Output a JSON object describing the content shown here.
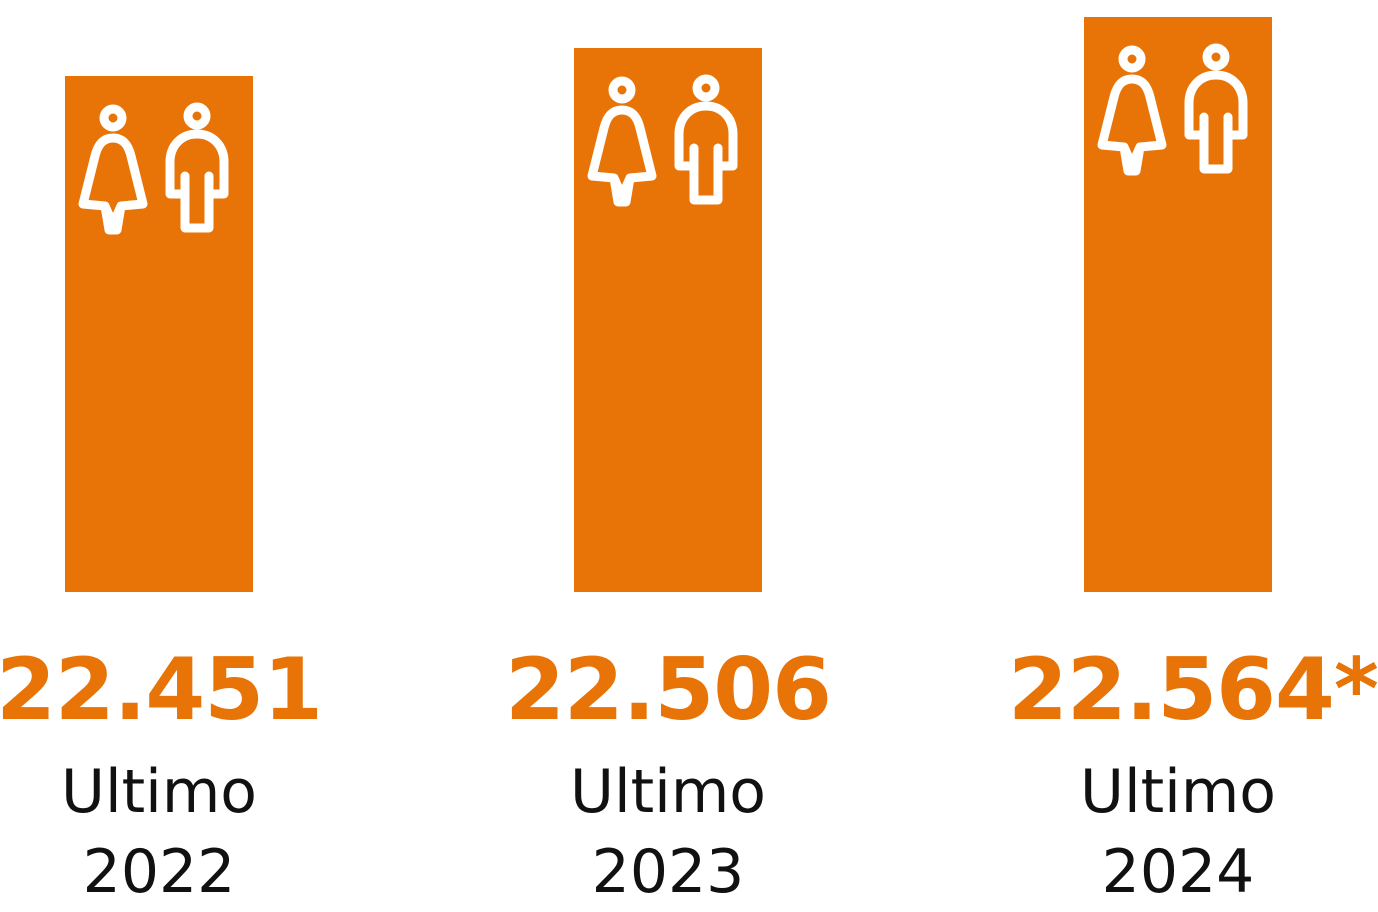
{
  "chart_data": {
    "type": "bar",
    "categories": [
      "Ultimo 2022",
      "Ultimo 2023",
      "Ultimo 2024"
    ],
    "values": [
      22451,
      22506,
      22564
    ],
    "value_labels": [
      "22.451",
      "22.506",
      "22.564*"
    ],
    "color": "#e87306",
    "ylim": [
      21470,
      22585
    ]
  }
}
